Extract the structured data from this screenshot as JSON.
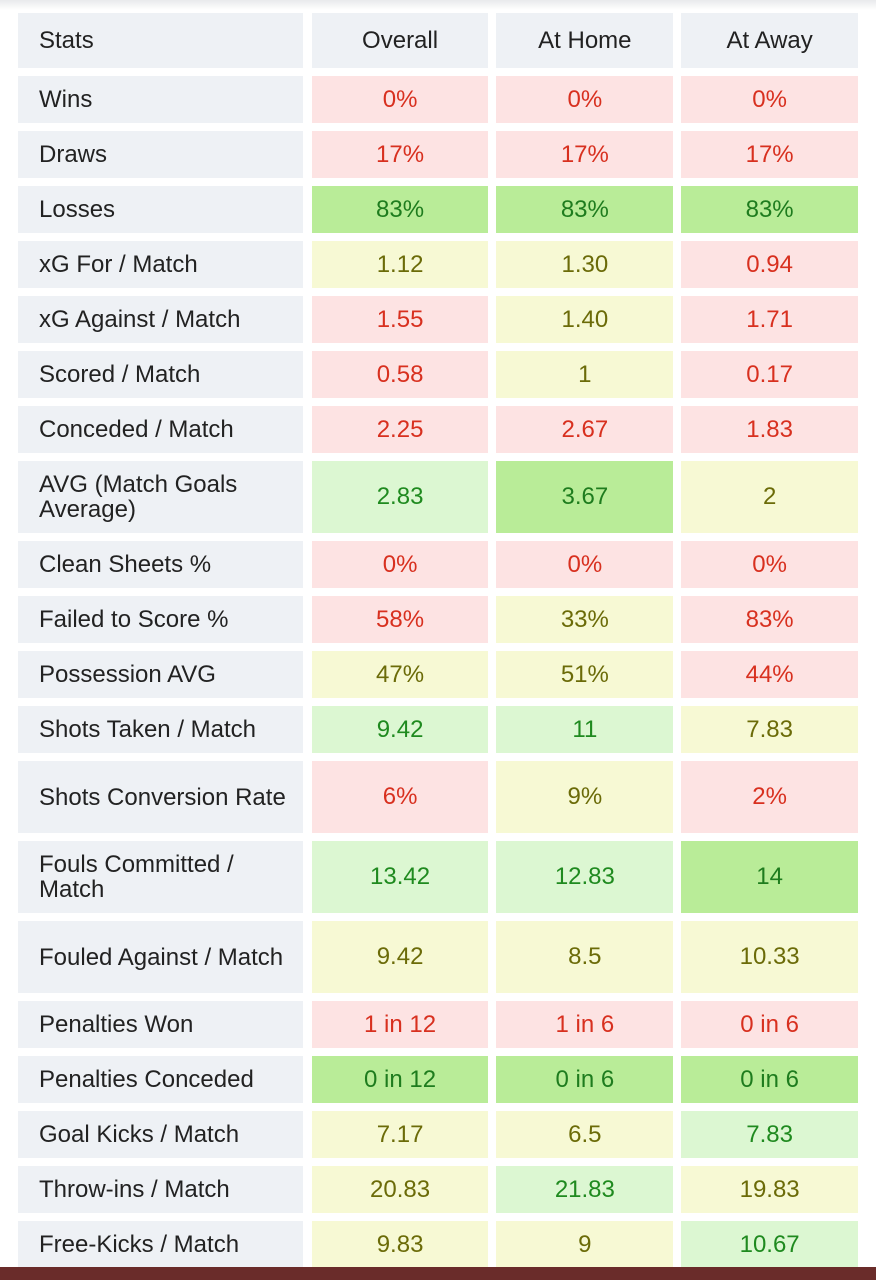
{
  "header": {
    "stats": "Stats",
    "overall": "Overall",
    "home": "At Home",
    "away": "At Away"
  },
  "colors": {
    "red": "#fde3e3",
    "yellow": "#f7f9d4",
    "light_green": "#dcf7d2",
    "green": "#b9ec98",
    "label_bg": "#eef1f5",
    "bottom_bar": "#6a2c2a"
  },
  "rows": [
    {
      "label": "Wins",
      "overall": {
        "v": "0%",
        "c": "red"
      },
      "home": {
        "v": "0%",
        "c": "red"
      },
      "away": {
        "v": "0%",
        "c": "red"
      }
    },
    {
      "label": "Draws",
      "overall": {
        "v": "17%",
        "c": "red"
      },
      "home": {
        "v": "17%",
        "c": "red"
      },
      "away": {
        "v": "17%",
        "c": "red"
      }
    },
    {
      "label": "Losses",
      "overall": {
        "v": "83%",
        "c": "green"
      },
      "home": {
        "v": "83%",
        "c": "green"
      },
      "away": {
        "v": "83%",
        "c": "green"
      }
    },
    {
      "label": "xG For / Match",
      "overall": {
        "v": "1.12",
        "c": "yellow"
      },
      "home": {
        "v": "1.30",
        "c": "yellow"
      },
      "away": {
        "v": "0.94",
        "c": "red"
      }
    },
    {
      "label": "xG Against / Match",
      "overall": {
        "v": "1.55",
        "c": "red"
      },
      "home": {
        "v": "1.40",
        "c": "yellow"
      },
      "away": {
        "v": "1.71",
        "c": "red"
      }
    },
    {
      "label": "Scored / Match",
      "overall": {
        "v": "0.58",
        "c": "red"
      },
      "home": {
        "v": "1",
        "c": "yellow"
      },
      "away": {
        "v": "0.17",
        "c": "red"
      }
    },
    {
      "label": "Conceded / Match",
      "overall": {
        "v": "2.25",
        "c": "red"
      },
      "home": {
        "v": "2.67",
        "c": "red"
      },
      "away": {
        "v": "1.83",
        "c": "red"
      }
    },
    {
      "label": "AVG (Match Goals Average)",
      "overall": {
        "v": "2.83",
        "c": "lgreen"
      },
      "home": {
        "v": "3.67",
        "c": "green"
      },
      "away": {
        "v": "2",
        "c": "yellow"
      }
    },
    {
      "label": "Clean Sheets %",
      "overall": {
        "v": "0%",
        "c": "red"
      },
      "home": {
        "v": "0%",
        "c": "red"
      },
      "away": {
        "v": "0%",
        "c": "red"
      }
    },
    {
      "label": "Failed to Score %",
      "overall": {
        "v": "58%",
        "c": "red"
      },
      "home": {
        "v": "33%",
        "c": "yellow"
      },
      "away": {
        "v": "83%",
        "c": "red"
      }
    },
    {
      "label": "Possession AVG",
      "overall": {
        "v": "47%",
        "c": "yellow"
      },
      "home": {
        "v": "51%",
        "c": "yellow"
      },
      "away": {
        "v": "44%",
        "c": "red"
      }
    },
    {
      "label": "Shots Taken / Match",
      "overall": {
        "v": "9.42",
        "c": "lgreen"
      },
      "home": {
        "v": "11",
        "c": "lgreen"
      },
      "away": {
        "v": "7.83",
        "c": "yellow"
      }
    },
    {
      "label": "Shots Conversion Rate",
      "overall": {
        "v": "6%",
        "c": "red"
      },
      "home": {
        "v": "9%",
        "c": "yellow"
      },
      "away": {
        "v": "2%",
        "c": "red"
      }
    },
    {
      "label": "Fouls Committed / Match",
      "overall": {
        "v": "13.42",
        "c": "lgreen"
      },
      "home": {
        "v": "12.83",
        "c": "lgreen"
      },
      "away": {
        "v": "14",
        "c": "green"
      }
    },
    {
      "label": "Fouled Against / Match",
      "overall": {
        "v": "9.42",
        "c": "yellow"
      },
      "home": {
        "v": "8.5",
        "c": "yellow"
      },
      "away": {
        "v": "10.33",
        "c": "yellow"
      }
    },
    {
      "label": "Penalties Won",
      "overall": {
        "v": "1 in 12",
        "c": "red"
      },
      "home": {
        "v": "1 in 6",
        "c": "red"
      },
      "away": {
        "v": "0 in 6",
        "c": "red"
      }
    },
    {
      "label": "Penalties Conceded",
      "overall": {
        "v": "0 in 12",
        "c": "green"
      },
      "home": {
        "v": "0 in 6",
        "c": "green"
      },
      "away": {
        "v": "0 in 6",
        "c": "green"
      }
    },
    {
      "label": "Goal Kicks / Match",
      "overall": {
        "v": "7.17",
        "c": "yellow"
      },
      "home": {
        "v": "6.5",
        "c": "yellow"
      },
      "away": {
        "v": "7.83",
        "c": "lgreen"
      }
    },
    {
      "label": "Throw-ins / Match",
      "overall": {
        "v": "20.83",
        "c": "yellow"
      },
      "home": {
        "v": "21.83",
        "c": "lgreen"
      },
      "away": {
        "v": "19.83",
        "c": "yellow"
      }
    },
    {
      "label": "Free-Kicks / Match",
      "overall": {
        "v": "9.83",
        "c": "yellow"
      },
      "home": {
        "v": "9",
        "c": "yellow"
      },
      "away": {
        "v": "10.67",
        "c": "lgreen"
      }
    }
  ]
}
